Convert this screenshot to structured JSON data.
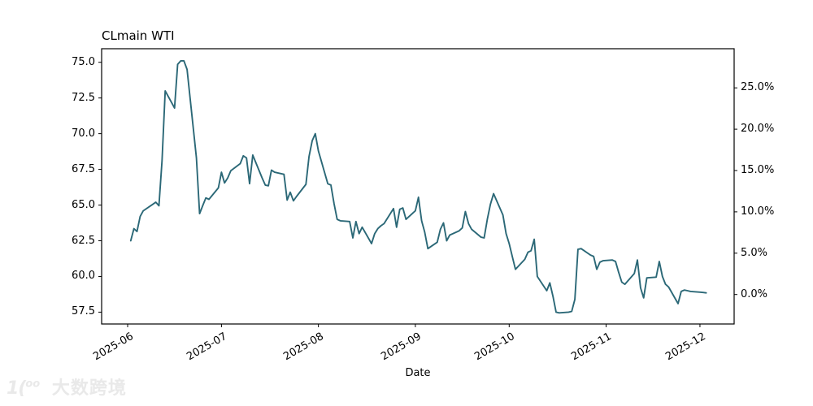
{
  "figure": {
    "title": "CLmain WTI",
    "xlabel": "Date",
    "background": "#ffffff"
  },
  "watermark": {
    "logo_main": "1(",
    "logo_super": "oo",
    "text": "大数跨境"
  },
  "chart_data": {
    "type": "line",
    "title": "CLmain WTI",
    "xlabel": "Date",
    "grid": false,
    "legend": false,
    "line_color": "#2b6877",
    "axis_color": "#000000",
    "x_tick_labels": [
      "2025-06",
      "2025-07",
      "2025-08",
      "2025-09",
      "2025-10",
      "2025-11",
      "2025-12"
    ],
    "x_tick_day_offsets": [
      0,
      30,
      61,
      92,
      122,
      153,
      183
    ],
    "y_left_tick_labels": [
      "75.0",
      "72.5",
      "70.0",
      "67.5",
      "65.0",
      "62.5",
      "60.0",
      "57.5"
    ],
    "y_left_tick_values": [
      75.0,
      72.5,
      70.0,
      67.5,
      65.0,
      62.5,
      60.0,
      57.5
    ],
    "ylim_left": [
      56.7,
      76.0
    ],
    "y_right_tick_labels": [
      "25.0%",
      "20.0%",
      "15.0%",
      "10.0%",
      "5.0%",
      "0.0%"
    ],
    "y_right_tick_values": [
      25,
      20,
      15,
      10,
      5,
      0
    ],
    "series": [
      {
        "name": "CLmain WTI",
        "dates": [
          "2025-06-02",
          "2025-06-03",
          "2025-06-04",
          "2025-06-05",
          "2025-06-06",
          "2025-06-09",
          "2025-06-10",
          "2025-06-11",
          "2025-06-12",
          "2025-06-13",
          "2025-06-16",
          "2025-06-17",
          "2025-06-18",
          "2025-06-19",
          "2025-06-20",
          "2025-06-23",
          "2025-06-24",
          "2025-06-25",
          "2025-06-26",
          "2025-06-27",
          "2025-06-30",
          "2025-07-01",
          "2025-07-02",
          "2025-07-03",
          "2025-07-04",
          "2025-07-07",
          "2025-07-08",
          "2025-07-09",
          "2025-07-10",
          "2025-07-11",
          "2025-07-14",
          "2025-07-15",
          "2025-07-16",
          "2025-07-17",
          "2025-07-18",
          "2025-07-21",
          "2025-07-22",
          "2025-07-23",
          "2025-07-24",
          "2025-07-25",
          "2025-07-28",
          "2025-07-29",
          "2025-07-30",
          "2025-07-31",
          "2025-08-01",
          "2025-08-04",
          "2025-08-05",
          "2025-08-06",
          "2025-08-07",
          "2025-08-08",
          "2025-08-11",
          "2025-08-12",
          "2025-08-13",
          "2025-08-14",
          "2025-08-15",
          "2025-08-18",
          "2025-08-19",
          "2025-08-20",
          "2025-08-21",
          "2025-08-22",
          "2025-08-25",
          "2025-08-26",
          "2025-08-27",
          "2025-08-28",
          "2025-08-29",
          "2025-09-01",
          "2025-09-02",
          "2025-09-03",
          "2025-09-04",
          "2025-09-05",
          "2025-09-08",
          "2025-09-09",
          "2025-09-10",
          "2025-09-11",
          "2025-09-12",
          "2025-09-15",
          "2025-09-16",
          "2025-09-17",
          "2025-09-18",
          "2025-09-19",
          "2025-09-22",
          "2025-09-23",
          "2025-09-24",
          "2025-09-25",
          "2025-09-26",
          "2025-09-29",
          "2025-09-30",
          "2025-10-01",
          "2025-10-02",
          "2025-10-03",
          "2025-10-06",
          "2025-10-07",
          "2025-10-08",
          "2025-10-09",
          "2025-10-10",
          "2025-10-13",
          "2025-10-14",
          "2025-10-15",
          "2025-10-16",
          "2025-10-17",
          "2025-10-20",
          "2025-10-21",
          "2025-10-22",
          "2025-10-23",
          "2025-10-24",
          "2025-10-27",
          "2025-10-28",
          "2025-10-29",
          "2025-10-30",
          "2025-10-31",
          "2025-11-03",
          "2025-11-04",
          "2025-11-05",
          "2025-11-06",
          "2025-11-07",
          "2025-11-10",
          "2025-11-11",
          "2025-11-12",
          "2025-11-13",
          "2025-11-14",
          "2025-11-17",
          "2025-11-18",
          "2025-11-19",
          "2025-11-20",
          "2025-11-21",
          "2025-11-24",
          "2025-11-25",
          "2025-11-26",
          "2025-11-27",
          "2025-11-28",
          "2025-12-01",
          "2025-12-02",
          "2025-12-03"
        ],
        "values": [
          62.5,
          63.35,
          63.15,
          64.2,
          64.6,
          65.05,
          65.2,
          64.95,
          68.1,
          73.0,
          71.8,
          74.85,
          75.1,
          75.1,
          74.5,
          68.3,
          64.4,
          64.95,
          65.5,
          65.4,
          66.2,
          67.3,
          66.55,
          66.9,
          67.4,
          67.9,
          68.45,
          68.3,
          66.5,
          68.5,
          66.9,
          66.4,
          66.35,
          67.45,
          67.3,
          67.15,
          65.35,
          65.9,
          65.3,
          65.6,
          66.45,
          68.4,
          69.5,
          70.0,
          68.8,
          66.5,
          66.4,
          65.1,
          64.0,
          63.9,
          63.85,
          62.7,
          63.85,
          63.0,
          63.45,
          62.3,
          63.0,
          63.35,
          63.55,
          63.7,
          64.75,
          63.45,
          64.7,
          64.8,
          64.0,
          64.6,
          65.55,
          63.9,
          63.1,
          61.95,
          62.4,
          63.3,
          63.75,
          62.5,
          62.9,
          63.2,
          63.4,
          64.55,
          63.7,
          63.3,
          62.75,
          62.7,
          64.0,
          65.05,
          65.8,
          64.3,
          63.0,
          62.3,
          61.4,
          60.5,
          61.2,
          61.7,
          61.8,
          62.6,
          60.0,
          59.0,
          59.55,
          58.6,
          57.5,
          57.45,
          57.5,
          57.55,
          58.4,
          61.9,
          61.95,
          61.5,
          61.4,
          60.5,
          61.0,
          61.1,
          61.15,
          61.05,
          60.3,
          59.6,
          59.45,
          60.2,
          61.15,
          59.2,
          58.5,
          59.9,
          59.95,
          61.05,
          60.0,
          59.45,
          59.25,
          58.1,
          58.95,
          59.05,
          59.0,
          58.95,
          58.9,
          58.88,
          58.85
        ]
      }
    ]
  }
}
